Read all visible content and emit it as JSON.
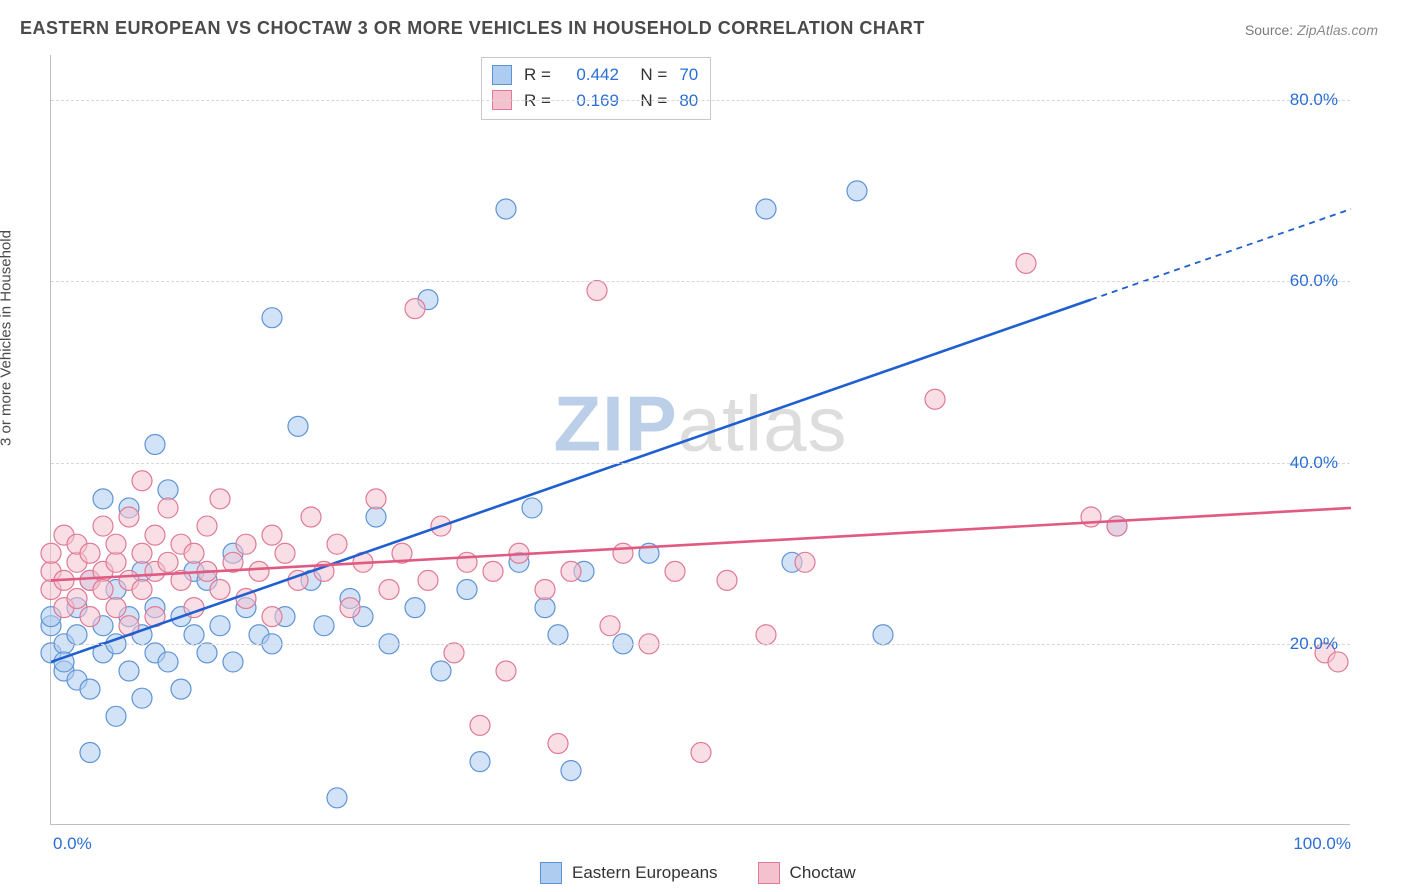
{
  "title": "EASTERN EUROPEAN VS CHOCTAW 3 OR MORE VEHICLES IN HOUSEHOLD CORRELATION CHART",
  "source_label": "Source:",
  "source_value": "ZipAtlas.com",
  "ylabel": "3 or more Vehicles in Household",
  "watermark_z": "ZIP",
  "watermark_rest": "atlas",
  "chart": {
    "type": "scatter-with-regression",
    "xlim": [
      0,
      100
    ],
    "ylim": [
      0,
      85
    ],
    "y_ticks": [
      20,
      40,
      60,
      80
    ],
    "y_tick_labels": [
      "20.0%",
      "40.0%",
      "60.0%",
      "80.0%"
    ],
    "x_ticks_pos": [
      0,
      100
    ],
    "x_tick_labels": [
      "0.0%",
      "100.0%"
    ],
    "grid_color": "#d8d8d8",
    "axis_color": "#bfbfbf",
    "background_color": "#ffffff",
    "tick_label_color": "#2a6fd6",
    "tick_fontsize": 17,
    "title_fontsize": 18,
    "label_fontsize": 15,
    "marker_radius": 10,
    "marker_opacity": 0.55,
    "marker_stroke_width": 1.2,
    "line_width": 2.6,
    "series": [
      {
        "name": "Eastern Europeans",
        "fill_color": "#aeccf0",
        "stroke_color": "#5e94d6",
        "line_color": "#1f5fd0",
        "R": "0.442",
        "N": "70",
        "trend": {
          "x1": 0,
          "y1": 18,
          "x2": 80,
          "y2": 58,
          "dash_to_x": 100,
          "dash_to_y": 68
        },
        "points": [
          [
            0,
            19
          ],
          [
            0,
            22
          ],
          [
            0,
            23
          ],
          [
            1,
            17
          ],
          [
            1,
            20
          ],
          [
            1,
            18
          ],
          [
            2,
            21
          ],
          [
            2,
            16
          ],
          [
            2,
            24
          ],
          [
            3,
            8
          ],
          [
            3,
            27
          ],
          [
            3,
            15
          ],
          [
            4,
            19
          ],
          [
            4,
            36
          ],
          [
            4,
            22
          ],
          [
            5,
            12
          ],
          [
            5,
            26
          ],
          [
            5,
            20
          ],
          [
            6,
            23
          ],
          [
            6,
            35
          ],
          [
            6,
            17
          ],
          [
            7,
            14
          ],
          [
            7,
            21
          ],
          [
            7,
            28
          ],
          [
            8,
            19
          ],
          [
            8,
            24
          ],
          [
            8,
            42
          ],
          [
            9,
            37
          ],
          [
            9,
            18
          ],
          [
            10,
            23
          ],
          [
            10,
            15
          ],
          [
            11,
            21
          ],
          [
            11,
            28
          ],
          [
            12,
            19
          ],
          [
            12,
            27
          ],
          [
            13,
            22
          ],
          [
            14,
            30
          ],
          [
            14,
            18
          ],
          [
            15,
            24
          ],
          [
            16,
            21
          ],
          [
            17,
            20
          ],
          [
            17,
            56
          ],
          [
            18,
            23
          ],
          [
            19,
            44
          ],
          [
            20,
            27
          ],
          [
            21,
            22
          ],
          [
            22,
            3
          ],
          [
            23,
            25
          ],
          [
            24,
            23
          ],
          [
            25,
            34
          ],
          [
            26,
            20
          ],
          [
            28,
            24
          ],
          [
            29,
            58
          ],
          [
            30,
            17
          ],
          [
            32,
            26
          ],
          [
            33,
            7
          ],
          [
            35,
            68
          ],
          [
            36,
            29
          ],
          [
            37,
            35
          ],
          [
            38,
            24
          ],
          [
            39,
            21
          ],
          [
            40,
            6
          ],
          [
            41,
            28
          ],
          [
            44,
            20
          ],
          [
            46,
            30
          ],
          [
            55,
            68
          ],
          [
            57,
            29
          ],
          [
            62,
            70
          ],
          [
            64,
            21
          ],
          [
            82,
            33
          ]
        ]
      },
      {
        "name": "Choctaw",
        "fill_color": "#f4c2cf",
        "stroke_color": "#e07a96",
        "line_color": "#e05a82",
        "R": "0.169",
        "N": "80",
        "trend": {
          "x1": 0,
          "y1": 27,
          "x2": 100,
          "y2": 35
        },
        "points": [
          [
            0,
            26
          ],
          [
            0,
            28
          ],
          [
            0,
            30
          ],
          [
            1,
            27
          ],
          [
            1,
            24
          ],
          [
            1,
            32
          ],
          [
            2,
            29
          ],
          [
            2,
            25
          ],
          [
            2,
            31
          ],
          [
            3,
            27
          ],
          [
            3,
            30
          ],
          [
            3,
            23
          ],
          [
            4,
            28
          ],
          [
            4,
            33
          ],
          [
            4,
            26
          ],
          [
            5,
            29
          ],
          [
            5,
            24
          ],
          [
            5,
            31
          ],
          [
            6,
            27
          ],
          [
            6,
            34
          ],
          [
            6,
            22
          ],
          [
            7,
            30
          ],
          [
            7,
            26
          ],
          [
            7,
            38
          ],
          [
            8,
            28
          ],
          [
            8,
            23
          ],
          [
            8,
            32
          ],
          [
            9,
            29
          ],
          [
            9,
            35
          ],
          [
            10,
            27
          ],
          [
            10,
            31
          ],
          [
            11,
            24
          ],
          [
            11,
            30
          ],
          [
            12,
            28
          ],
          [
            12,
            33
          ],
          [
            13,
            26
          ],
          [
            13,
            36
          ],
          [
            14,
            29
          ],
          [
            15,
            31
          ],
          [
            15,
            25
          ],
          [
            16,
            28
          ],
          [
            17,
            32
          ],
          [
            17,
            23
          ],
          [
            18,
            30
          ],
          [
            19,
            27
          ],
          [
            20,
            34
          ],
          [
            21,
            28
          ],
          [
            22,
            31
          ],
          [
            23,
            24
          ],
          [
            24,
            29
          ],
          [
            25,
            36
          ],
          [
            26,
            26
          ],
          [
            27,
            30
          ],
          [
            28,
            57
          ],
          [
            29,
            27
          ],
          [
            30,
            33
          ],
          [
            31,
            19
          ],
          [
            32,
            29
          ],
          [
            33,
            11
          ],
          [
            34,
            28
          ],
          [
            35,
            17
          ],
          [
            36,
            30
          ],
          [
            38,
            26
          ],
          [
            39,
            9
          ],
          [
            40,
            28
          ],
          [
            42,
            59
          ],
          [
            43,
            22
          ],
          [
            44,
            30
          ],
          [
            46,
            20
          ],
          [
            48,
            28
          ],
          [
            50,
            8
          ],
          [
            52,
            27
          ],
          [
            55,
            21
          ],
          [
            58,
            29
          ],
          [
            68,
            47
          ],
          [
            75,
            62
          ],
          [
            80,
            34
          ],
          [
            82,
            33
          ],
          [
            98,
            19
          ],
          [
            99,
            18
          ]
        ]
      }
    ]
  },
  "legend_top_rows": [
    {
      "swatch_fill": "#aeccf0",
      "swatch_stroke": "#5e94d6",
      "r": "0.442",
      "n": "70"
    },
    {
      "swatch_fill": "#f4c2cf",
      "swatch_stroke": "#e07a96",
      "r": "0.169",
      "n": "80"
    }
  ],
  "legend_bottom": [
    {
      "swatch_fill": "#aeccf0",
      "swatch_stroke": "#5e94d6",
      "label": "Eastern Europeans"
    },
    {
      "swatch_fill": "#f4c2cf",
      "swatch_stroke": "#e07a96",
      "label": "Choctaw"
    }
  ]
}
